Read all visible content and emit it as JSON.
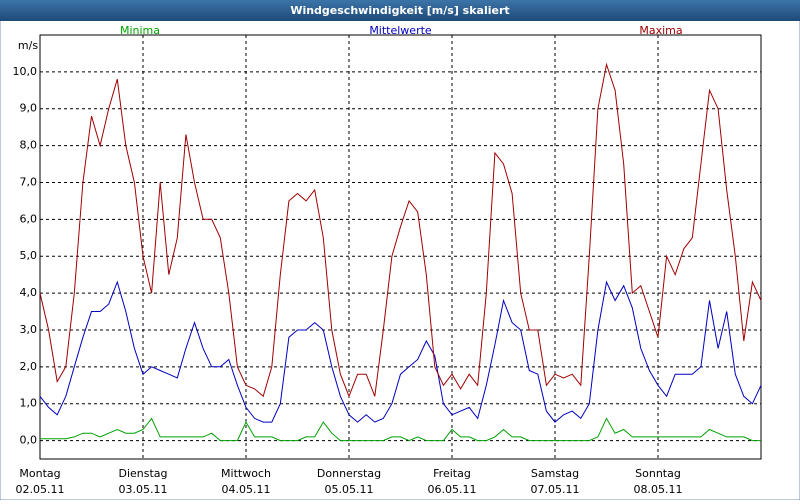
{
  "chart_data": {
    "type": "line",
    "title": "Windgeschwindigkeit [m/s] skaliert",
    "y_label": "m/s",
    "x": [
      0,
      2,
      4,
      6,
      8,
      10,
      12,
      14,
      16,
      18,
      20,
      22,
      24,
      26,
      28,
      30,
      32,
      34,
      36,
      38,
      40,
      42,
      44,
      46,
      48,
      50,
      52,
      54,
      56,
      58,
      60,
      62,
      64,
      66,
      68,
      70,
      72,
      74,
      76,
      78,
      80,
      82,
      84,
      86,
      88,
      90,
      92,
      94,
      96,
      98,
      100,
      102,
      104,
      106,
      108,
      110,
      112,
      114,
      116,
      118,
      120,
      122,
      124,
      126,
      128,
      130,
      132,
      134,
      136,
      138,
      140,
      142,
      144,
      146,
      148,
      150,
      152,
      154,
      156,
      158,
      160,
      162,
      164,
      166,
      168
    ],
    "xlim": [
      0,
      168
    ],
    "xticks": [
      {
        "value": 0,
        "label": "Montag",
        "date": "02.05.11"
      },
      {
        "value": 24,
        "label": "Dienstag",
        "date": "03.05.11"
      },
      {
        "value": 48,
        "label": "Mittwoch",
        "date": "04.05.11"
      },
      {
        "value": 72,
        "label": "Donnerstag",
        "date": "05.05.11"
      },
      {
        "value": 96,
        "label": "Freitag",
        "date": "06.05.11"
      },
      {
        "value": 120,
        "label": "Samstag",
        "date": "07.05.11"
      },
      {
        "value": 144,
        "label": "Sonntag",
        "date": "08.05.11"
      }
    ],
    "ylim": [
      -0.5,
      11
    ],
    "yticks": [
      {
        "value": 0,
        "label": "0,0"
      },
      {
        "value": 1,
        "label": "1,0"
      },
      {
        "value": 2,
        "label": "2,0"
      },
      {
        "value": 3,
        "label": "3,0"
      },
      {
        "value": 4,
        "label": "4,0"
      },
      {
        "value": 5,
        "label": "5,0"
      },
      {
        "value": 6,
        "label": "6,0"
      },
      {
        "value": 7,
        "label": "7,0"
      },
      {
        "value": 8,
        "label": "8,0"
      },
      {
        "value": 9,
        "label": "9,0"
      },
      {
        "value": 10,
        "label": "10,0"
      }
    ],
    "grid": true,
    "legend": "top",
    "series": [
      {
        "name": "Minima",
        "color": "#00a000",
        "values": [
          0.05,
          0.05,
          0.05,
          0.05,
          0.1,
          0.2,
          0.2,
          0.1,
          0.2,
          0.3,
          0.2,
          0.2,
          0.3,
          0.6,
          0.1,
          0.1,
          0.1,
          0.1,
          0.1,
          0.1,
          0.2,
          0.0,
          0.0,
          0.0,
          0.5,
          0.1,
          0.1,
          0.1,
          0.0,
          0.0,
          0.0,
          0.1,
          0.1,
          0.5,
          0.2,
          0.0,
          0.0,
          0.0,
          0.0,
          0.0,
          0.0,
          0.1,
          0.1,
          0.0,
          0.1,
          0.0,
          0.0,
          0.0,
          0.3,
          0.1,
          0.1,
          0.0,
          0.0,
          0.1,
          0.3,
          0.1,
          0.1,
          0.0,
          0.0,
          0.0,
          0.0,
          0.0,
          0.0,
          0.0,
          0.0,
          0.1,
          0.6,
          0.2,
          0.3,
          0.1,
          0.1,
          0.1,
          0.1,
          0.1,
          0.1,
          0.1,
          0.1,
          0.1,
          0.3,
          0.2,
          0.1,
          0.1,
          0.1,
          0.0,
          0.0
        ]
      },
      {
        "name": "Mittelwerte",
        "color": "#0000c0",
        "values": [
          1.2,
          0.9,
          0.7,
          1.2,
          2.0,
          2.8,
          3.5,
          3.5,
          3.7,
          4.3,
          3.5,
          2.5,
          1.8,
          2.0,
          1.9,
          1.8,
          1.7,
          2.5,
          3.2,
          2.5,
          2.0,
          2.0,
          2.2,
          1.5,
          0.9,
          0.6,
          0.5,
          0.5,
          1.0,
          2.8,
          3.0,
          3.0,
          3.2,
          3.0,
          2.0,
          1.2,
          0.7,
          0.5,
          0.7,
          0.5,
          0.6,
          1.0,
          1.8,
          2.0,
          2.2,
          2.7,
          2.3,
          1.0,
          0.7,
          0.8,
          0.9,
          0.6,
          1.5,
          2.6,
          3.8,
          3.2,
          3.0,
          1.9,
          1.8,
          0.8,
          0.5,
          0.7,
          0.8,
          0.6,
          1.0,
          3.0,
          4.3,
          3.8,
          4.2,
          3.6,
          2.5,
          1.9,
          1.5,
          1.2,
          1.8,
          1.8,
          1.8,
          2.0,
          3.8,
          2.5,
          3.5,
          1.8,
          1.2,
          1.0,
          1.5
        ]
      },
      {
        "name": "Maxima",
        "color": "#a00000",
        "values": [
          4.0,
          3.0,
          1.6,
          2.0,
          4.0,
          7.0,
          8.8,
          8.0,
          9.0,
          9.8,
          8.0,
          7.0,
          5.0,
          4.0,
          7.0,
          4.5,
          5.5,
          8.3,
          7.0,
          6.0,
          6.0,
          5.5,
          4.0,
          2.0,
          1.5,
          1.4,
          1.2,
          2.0,
          4.5,
          6.5,
          6.7,
          6.5,
          6.8,
          5.5,
          3.0,
          1.8,
          1.2,
          1.8,
          1.8,
          1.2,
          3.0,
          5.0,
          5.8,
          6.5,
          6.2,
          4.5,
          2.0,
          1.5,
          1.8,
          1.4,
          1.8,
          1.5,
          4.0,
          7.8,
          7.5,
          6.7,
          4.0,
          3.0,
          3.0,
          1.5,
          1.8,
          1.7,
          1.8,
          1.5,
          5.0,
          9.0,
          10.2,
          9.5,
          7.5,
          4.0,
          4.2,
          3.5,
          2.8,
          5.0,
          4.5,
          5.2,
          5.5,
          7.5,
          9.5,
          9.0,
          6.8,
          5.0,
          2.7,
          4.3,
          3.8
        ]
      }
    ]
  }
}
